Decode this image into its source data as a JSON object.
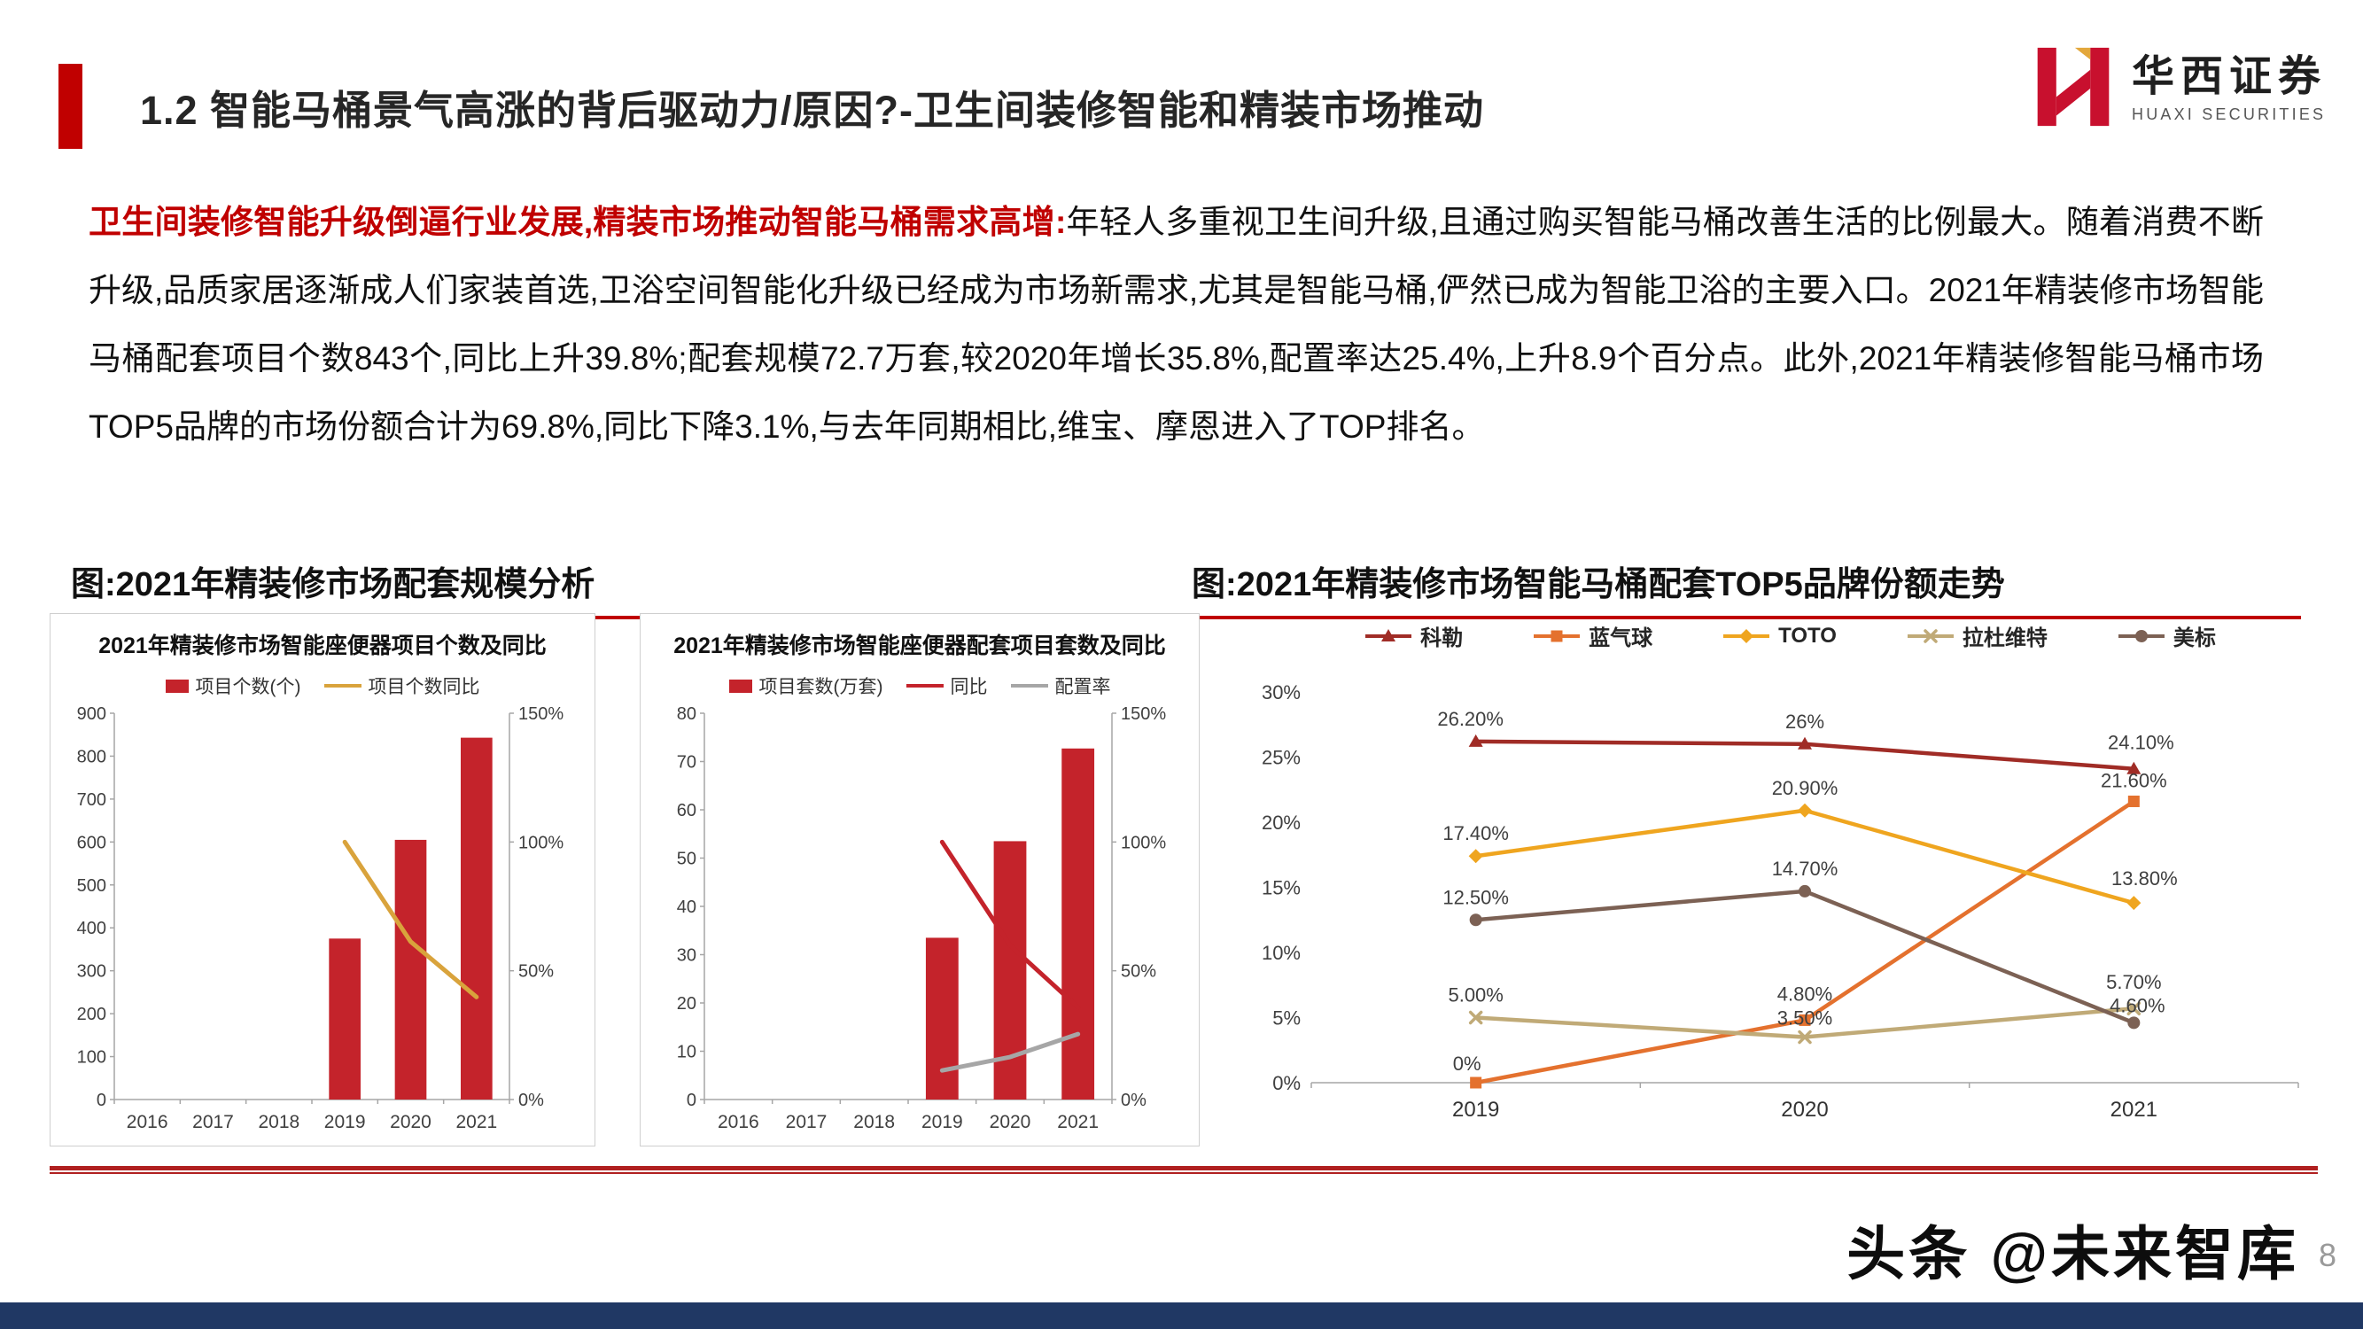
{
  "header": {
    "title": "1.2 智能马桶景气高涨的背后驱动力/原因?-卫生间装修智能和精装市场推动",
    "accent_color": "#c00000"
  },
  "logo": {
    "cn": "华西证券",
    "en": "HUAXI SECURITIES"
  },
  "intro": {
    "lead": "卫生间装修智能升级倒逼行业发展,精装市场推动智能马桶需求高增:",
    "body": "年轻人多重视卫生间升级,且通过购买智能马桶改善生活的比例最大。随着消费不断升级,品质家居逐渐成人们家装首选,卫浴空间智能化升级已经成为市场新需求,尤其是智能马桶,俨然已成为智能卫浴的主要入口。2021年精装修市场智能马桶配套项目个数843个,同比上升39.8%;配套规模72.7万套,较2020年增长35.8%,配置率达25.4%,上升8.9个百分点。此外,2021年精装修智能马桶市场TOP5品牌的市场份额合计为69.8%,同比下降3.1%,与去年同期相比,维宝、摩恩进入了TOP排名。"
  },
  "figures": {
    "left_title": "图:2021年精装修市场配套规模分析",
    "right_title": "图:2021年精装修市场智能马桶配套TOP5品牌份额走势"
  },
  "chart_data": [
    {
      "type": "bar-line",
      "title": "2021年精装修市场智能座便器项目个数及同比",
      "categories": [
        "2016",
        "2017",
        "2018",
        "2019",
        "2020",
        "2021"
      ],
      "bar_series": {
        "name": "项目个数(个)",
        "color": "#c4232b",
        "values": [
          null,
          null,
          null,
          375,
          605,
          843
        ]
      },
      "line_series": [
        {
          "name": "项目个数同比",
          "color": "#d9a33c",
          "values": [
            null,
            null,
            null,
            100,
            61.3,
            39.8
          ]
        }
      ],
      "left_axis": {
        "min": 0,
        "max": 900,
        "step": 100
      },
      "right_axis": {
        "min": 0,
        "max": 150,
        "step": 50,
        "suffix": "%"
      }
    },
    {
      "type": "bar-line",
      "title": "2021年精装修市场智能座便器配套项目套数及同比",
      "categories": [
        "2016",
        "2017",
        "2018",
        "2019",
        "2020",
        "2021"
      ],
      "bar_series": {
        "name": "项目套数(万套)",
        "color": "#c4232b",
        "values": [
          null,
          null,
          null,
          33.5,
          53.5,
          72.7
        ]
      },
      "line_series": [
        {
          "name": "同比",
          "color": "#c4232b",
          "values": [
            null,
            null,
            null,
            100,
            59.9,
            35.8
          ]
        },
        {
          "name": "配置率",
          "color": "#a6a6a6",
          "values": [
            null,
            null,
            null,
            11.3,
            16.5,
            25.4
          ]
        }
      ],
      "left_axis": {
        "min": 0,
        "max": 80,
        "step": 10
      },
      "right_axis": {
        "min": 0,
        "max": 150,
        "step": 50,
        "suffix": "%"
      }
    },
    {
      "type": "line",
      "categories": [
        "2019",
        "2020",
        "2021"
      ],
      "y_axis": {
        "min": 0,
        "max": 30,
        "step": 5,
        "suffix": "%"
      },
      "series": [
        {
          "name": "科勒",
          "color": "#a02c26",
          "marker": "triangle",
          "values": [
            26.2,
            26,
            24.1
          ],
          "labels": [
            "26.20%",
            "26%",
            "24.10%"
          ]
        },
        {
          "name": "蓝气球",
          "color": "#e4712e",
          "marker": "square",
          "values": [
            0,
            4.8,
            21.6
          ],
          "labels": [
            "0%",
            "4.80%",
            "21.60%"
          ]
        },
        {
          "name": "TOTO",
          "color": "#efa51f",
          "marker": "diamond",
          "values": [
            17.4,
            20.9,
            13.8
          ],
          "labels": [
            "17.40%",
            "20.90%",
            "13.80%"
          ]
        },
        {
          "name": "拉杜维特",
          "color": "#c0aa77",
          "marker": "x",
          "values": [
            5.0,
            3.5,
            5.7
          ],
          "labels": [
            "5.00%",
            "3.50%",
            "5.70%"
          ]
        },
        {
          "name": "美标",
          "color": "#7c6154",
          "marker": "circle",
          "values": [
            12.5,
            14.7,
            4.6
          ],
          "labels": [
            "12.50%",
            "14.70%",
            "4.60%"
          ]
        }
      ]
    }
  ],
  "watermark": "头条 @未来智库",
  "page_number": "8"
}
